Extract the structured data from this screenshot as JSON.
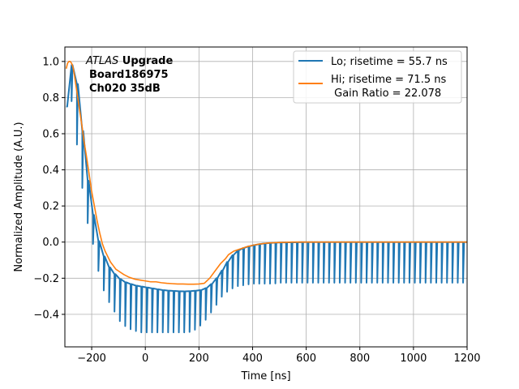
{
  "chart_data": {
    "type": "line",
    "xlabel": "Time [ns]",
    "ylabel": "Normalized Amplitude (A.U.)",
    "xlim": [
      -300,
      1200
    ],
    "ylim": [
      -0.58,
      1.08
    ],
    "xticks": [
      -200,
      0,
      200,
      400,
      600,
      800,
      1000,
      1200
    ],
    "yticks": [
      -0.4,
      -0.2,
      0.0,
      0.2,
      0.4,
      0.6,
      0.8,
      1.0
    ],
    "xtick_labels": [
      "−200",
      "0",
      "200",
      "400",
      "600",
      "800",
      "1000",
      "1200"
    ],
    "ytick_labels": [
      "−0.4",
      "−0.2",
      "0.0",
      "0.2",
      "0.4",
      "0.6",
      "0.8",
      "1.0"
    ],
    "grid": true,
    "legend_position": "top-right",
    "annotation": {
      "line1_italic": "ATLAS",
      "line1_bold": " Upgrade",
      "line2": "Board186975",
      "line3": "Ch020 35dB"
    },
    "series": [
      {
        "name": "Lo; risetime = 55.7 ns",
        "color": "#1f77b4",
        "spike_period_ns": 20,
        "x": [
          -295,
          -290,
          -285,
          -280,
          -270,
          -260,
          -250,
          -240,
          -230,
          -220,
          -210,
          -200,
          -190,
          -180,
          -170,
          -160,
          -150,
          -140,
          -120,
          -100,
          -80,
          -60,
          -40,
          -20,
          0,
          20,
          40,
          60,
          80,
          100,
          120,
          140,
          160,
          180,
          200,
          220,
          240,
          260,
          280,
          300,
          320,
          340,
          360,
          380,
          400,
          420,
          440,
          460,
          480,
          500,
          550,
          600,
          700,
          800,
          900,
          1000,
          1100,
          1200
        ],
        "y": [
          0.75,
          0.95,
          1.0,
          0.99,
          0.97,
          0.92,
          0.83,
          0.68,
          0.55,
          0.4,
          0.28,
          0.2,
          0.1,
          0.03,
          -0.02,
          -0.06,
          -0.1,
          -0.13,
          -0.17,
          -0.2,
          -0.22,
          -0.23,
          -0.24,
          -0.245,
          -0.25,
          -0.255,
          -0.26,
          -0.265,
          -0.268,
          -0.27,
          -0.272,
          -0.273,
          -0.272,
          -0.27,
          -0.268,
          -0.26,
          -0.24,
          -0.21,
          -0.17,
          -0.12,
          -0.08,
          -0.05,
          -0.035,
          -0.025,
          -0.018,
          -0.012,
          -0.008,
          -0.005,
          -0.003,
          -0.002,
          -0.001,
          0.0,
          0.0,
          0.0,
          0.0,
          0.0,
          0.0,
          0.0
        ],
        "spike_min_x": [
          -295,
          -285,
          -270,
          -260,
          -250,
          -240,
          -230,
          -220,
          -200,
          -180,
          -160,
          -140,
          -120,
          -100,
          -80,
          -60,
          -40,
          -20,
          0,
          20,
          40,
          60,
          80,
          100,
          120,
          140,
          160,
          180,
          200,
          220,
          240,
          260,
          280,
          300,
          320,
          340,
          360,
          380,
          400,
          420,
          440,
          460,
          480,
          500,
          550,
          600,
          700,
          800,
          900,
          1000,
          1100,
          1190
        ],
        "spike_min_y": [
          0.75,
          0.82,
          0.76,
          0.6,
          0.48,
          0.36,
          0.24,
          0.13,
          0.03,
          -0.13,
          -0.25,
          -0.32,
          -0.37,
          -0.43,
          -0.46,
          -0.48,
          -0.49,
          -0.5,
          -0.5,
          -0.5,
          -0.5,
          -0.5,
          -0.5,
          -0.5,
          -0.5,
          -0.5,
          -0.5,
          -0.49,
          -0.47,
          -0.44,
          -0.4,
          -0.36,
          -0.31,
          -0.28,
          -0.26,
          -0.245,
          -0.24,
          -0.235,
          -0.23,
          -0.23,
          -0.23,
          -0.23,
          -0.23,
          -0.225,
          -0.225,
          -0.225,
          -0.225,
          -0.225,
          -0.225,
          -0.225,
          -0.225,
          -0.225
        ]
      },
      {
        "name": "Hi; risetime = 71.5 ns",
        "name_line2": " Gain Ratio = 22.078",
        "color": "#ff7f0e",
        "x": [
          -295,
          -290,
          -285,
          -280,
          -275,
          -270,
          -265,
          -260,
          -255,
          -250,
          -245,
          -240,
          -235,
          -230,
          -220,
          -210,
          -200,
          -190,
          -180,
          -170,
          -160,
          -150,
          -140,
          -130,
          -120,
          -110,
          -100,
          -80,
          -60,
          -40,
          -20,
          0,
          20,
          40,
          60,
          80,
          100,
          120,
          140,
          160,
          180,
          200,
          220,
          240,
          260,
          280,
          300,
          310,
          320,
          330,
          340,
          360,
          380,
          400,
          420,
          440,
          460,
          480,
          500,
          550,
          600,
          700,
          800,
          900,
          1000,
          1100,
          1200
        ],
        "y": [
          0.96,
          0.99,
          1.0,
          1.0,
          0.99,
          0.97,
          0.93,
          0.88,
          0.83,
          0.78,
          0.73,
          0.68,
          0.63,
          0.57,
          0.48,
          0.38,
          0.28,
          0.2,
          0.12,
          0.05,
          -0.01,
          -0.05,
          -0.08,
          -0.11,
          -0.13,
          -0.15,
          -0.16,
          -0.18,
          -0.195,
          -0.205,
          -0.21,
          -0.215,
          -0.22,
          -0.22,
          -0.225,
          -0.228,
          -0.23,
          -0.232,
          -0.232,
          -0.233,
          -0.233,
          -0.232,
          -0.228,
          -0.2,
          -0.16,
          -0.12,
          -0.09,
          -0.07,
          -0.06,
          -0.05,
          -0.045,
          -0.035,
          -0.025,
          -0.018,
          -0.012,
          -0.008,
          -0.005,
          -0.003,
          -0.002,
          0.0,
          0.0,
          0.0,
          0.0,
          0.0,
          0.0,
          0.0,
          0.0
        ]
      }
    ]
  }
}
